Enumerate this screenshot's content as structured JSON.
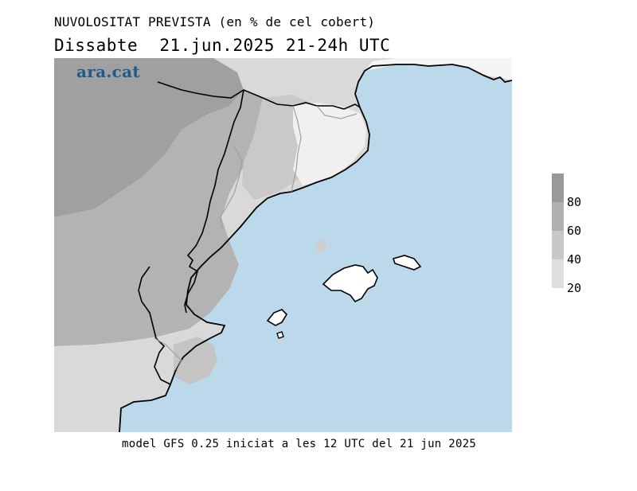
{
  "header": {
    "title": "NUVOLOSITAT PREVISTA (en % de cel cobert)",
    "day": "Dissabte",
    "date": "21.jun.2025",
    "period": "21-24h UTC"
  },
  "logo": {
    "text": "ara.cat"
  },
  "footer": {
    "text": "model GFS 0.25 iniciat a les 12 UTC del 21 jun 2025"
  },
  "legend": {
    "levels": [
      {
        "label": "80",
        "color": "#999999"
      },
      {
        "label": "60",
        "color": "#b0b0b0"
      },
      {
        "label": "40",
        "color": "#c8c8c8"
      },
      {
        "label": "20",
        "color": "#dedede"
      }
    ]
  },
  "colors": {
    "sea": "#bcd9ec",
    "land_clear": "#ffffff",
    "coast": "#000000",
    "borders_internal": "#a0a0a0"
  }
}
